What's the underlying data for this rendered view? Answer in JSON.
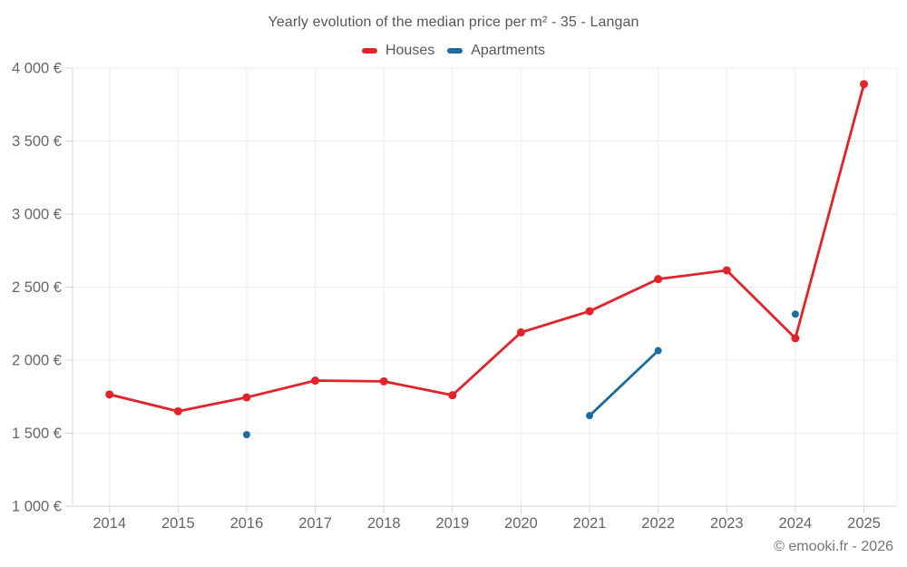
{
  "header": {
    "title": "Yearly evolution of the median price per m² - 35 - Langan",
    "legend": [
      {
        "label": "Houses",
        "color": "#e1232a"
      },
      {
        "label": "Apartments",
        "color": "#1a6d9e"
      }
    ]
  },
  "footer": {
    "credit": "© emooki.fr - 2026"
  },
  "chart_data": {
    "type": "line",
    "title": "Yearly evolution of the median price per m² - 35 - Langan",
    "x": [
      2014,
      2015,
      2016,
      2017,
      2018,
      2019,
      2020,
      2021,
      2022,
      2023,
      2024,
      2025
    ],
    "series": [
      {
        "name": "Houses",
        "color": "#e1232a",
        "marker_radius": 4.5,
        "values": [
          1765,
          1650,
          1745,
          1860,
          1855,
          1760,
          2190,
          2335,
          2555,
          2615,
          2150,
          3890
        ]
      },
      {
        "name": "Apartments",
        "color": "#1a6d9e",
        "marker_radius": 4,
        "values": [
          null,
          null,
          1490,
          null,
          null,
          null,
          null,
          1620,
          2065,
          null,
          2315,
          null
        ]
      }
    ],
    "ylim": [
      1000,
      4000
    ],
    "y_ticks": [
      {
        "value": 1000,
        "label": "1 000 €"
      },
      {
        "value": 1500,
        "label": "1 500 €"
      },
      {
        "value": 2000,
        "label": "2 000 €"
      },
      {
        "value": 2500,
        "label": "2 500 €"
      },
      {
        "value": 3000,
        "label": "3 000 €"
      },
      {
        "value": 3500,
        "label": "3 500 €"
      },
      {
        "value": 4000,
        "label": "4 000 €"
      }
    ],
    "grid": true,
    "legend_position": "top",
    "colors": {
      "grid": "#ececec",
      "axis": "#d4d4d4",
      "tick_text": "#666666"
    }
  }
}
